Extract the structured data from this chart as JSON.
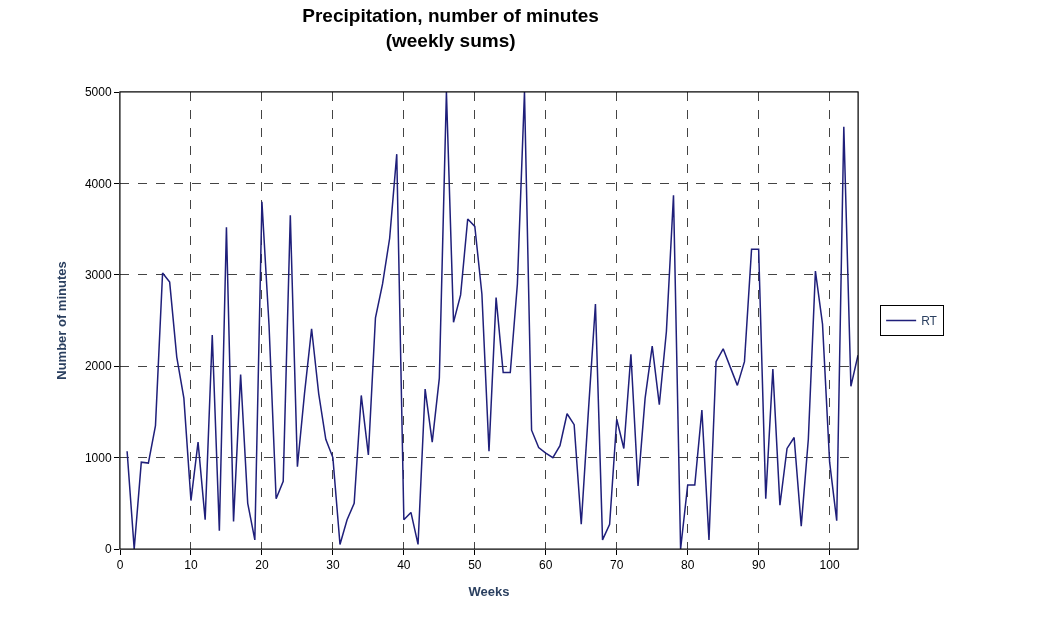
{
  "chart_data": {
    "type": "line",
    "title": "Precipitation, number of minutes\n(weekly sums)",
    "xlabel": "Weeks",
    "ylabel": "Number of minutes",
    "x": [
      1,
      2,
      3,
      4,
      5,
      6,
      7,
      8,
      9,
      10,
      11,
      12,
      13,
      14,
      15,
      16,
      17,
      18,
      19,
      20,
      21,
      22,
      23,
      24,
      25,
      26,
      27,
      28,
      29,
      30,
      31,
      32,
      33,
      34,
      35,
      36,
      37,
      38,
      39,
      40,
      41,
      42,
      43,
      44,
      45,
      46,
      47,
      48,
      49,
      50,
      51,
      52,
      53,
      54,
      55,
      56,
      57,
      58,
      59,
      60,
      61,
      62,
      63,
      64,
      65,
      66,
      67,
      68,
      69,
      70,
      71,
      72,
      73,
      74,
      75,
      76,
      77,
      78,
      79,
      80,
      81,
      82,
      83,
      84,
      85,
      86,
      87,
      88,
      89,
      90,
      91,
      92,
      93,
      94,
      95,
      96,
      97,
      98,
      99,
      100,
      101,
      102,
      103,
      104
    ],
    "series": [
      {
        "name": "RT",
        "color": "#1f1f7a",
        "values": [
          1070,
          0,
          950,
          940,
          1350,
          3020,
          2920,
          2100,
          1650,
          530,
          1170,
          320,
          2340,
          200,
          3520,
          300,
          1910,
          500,
          100,
          3800,
          2450,
          550,
          740,
          3650,
          900,
          1700,
          2410,
          1700,
          1200,
          1000,
          50,
          320,
          500,
          1680,
          1030,
          2530,
          2900,
          3400,
          4320,
          320,
          400,
          50,
          1750,
          1170,
          1870,
          5000,
          2480,
          2780,
          3610,
          3530,
          2790,
          1070,
          2750,
          1930,
          1930,
          2900,
          5000,
          1300,
          1110,
          1050,
          1000,
          1130,
          1480,
          1360,
          270,
          1500,
          2680,
          100,
          270,
          1420,
          1100,
          2130,
          690,
          1650,
          2220,
          1580,
          2380,
          3870,
          0,
          700,
          700,
          1520,
          100,
          2050,
          2190,
          1990,
          1790,
          2050,
          3280,
          3280,
          550,
          1970,
          480,
          1100,
          1220,
          250,
          1200,
          3040,
          2460,
          950,
          310,
          4620,
          1780,
          2120
        ]
      }
    ],
    "xlim": [
      0,
      104
    ],
    "xticks": [
      0,
      10,
      20,
      30,
      40,
      50,
      60,
      70,
      80,
      90,
      100
    ],
    "ylim": [
      0,
      5000
    ],
    "yticks": [
      0,
      1000,
      2000,
      3000,
      4000,
      5000
    ],
    "grid": true,
    "legend": "right",
    "marker": "none",
    "line_style": "solid"
  }
}
